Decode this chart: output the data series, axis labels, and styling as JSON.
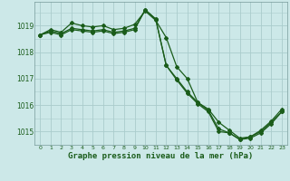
{
  "bg_color": "#cce8e8",
  "grid_color": "#aacccc",
  "line_color": "#1a5c1a",
  "xlabel": "Graphe pression niveau de la mer (hPa)",
  "xlabel_fontsize": 6.5,
  "ylim": [
    1014.5,
    1019.9
  ],
  "yticks": [
    1015,
    1016,
    1017,
    1018,
    1019
  ],
  "xticks": [
    0,
    1,
    2,
    3,
    4,
    5,
    6,
    7,
    8,
    9,
    10,
    11,
    12,
    13,
    14,
    15,
    16,
    17,
    18,
    19,
    20,
    21,
    22,
    23
  ],
  "line1_x": [
    0,
    1,
    2,
    3,
    4,
    5,
    6,
    7,
    8,
    9,
    10,
    11,
    12,
    13,
    14,
    15,
    16,
    17,
    18,
    19,
    20,
    21,
    22,
    23
  ],
  "line1_y": [
    1018.65,
    1018.85,
    1018.75,
    1019.1,
    1019.0,
    1018.95,
    1019.0,
    1018.85,
    1018.9,
    1019.05,
    1019.55,
    1019.2,
    1018.55,
    1017.45,
    1017.0,
    1016.1,
    1015.85,
    1015.35,
    1015.05,
    1014.75,
    1014.8,
    1015.0,
    1015.35,
    1015.75
  ],
  "line2_x": [
    0,
    1,
    2,
    3,
    4,
    5,
    6,
    7,
    8,
    9,
    10,
    11,
    12,
    13,
    14,
    15,
    16,
    17,
    18,
    19,
    20,
    21,
    22,
    23
  ],
  "line2_y": [
    1018.65,
    1018.8,
    1018.7,
    1018.9,
    1018.85,
    1018.8,
    1018.85,
    1018.75,
    1018.8,
    1018.9,
    1019.6,
    1019.25,
    1017.5,
    1017.0,
    1016.5,
    1016.1,
    1015.8,
    1015.1,
    1014.95,
    1014.7,
    1014.75,
    1014.95,
    1015.3,
    1015.75
  ],
  "line3_x": [
    0,
    1,
    2,
    3,
    4,
    5,
    6,
    7,
    8,
    9,
    10,
    11,
    12,
    13,
    14,
    15,
    16,
    17,
    18,
    19,
    20,
    21,
    22,
    23
  ],
  "line3_y": [
    1018.65,
    1018.75,
    1018.65,
    1018.85,
    1018.8,
    1018.75,
    1018.8,
    1018.7,
    1018.75,
    1018.85,
    1019.6,
    1019.25,
    1017.5,
    1016.95,
    1016.45,
    1016.05,
    1015.75,
    1015.0,
    1014.95,
    1014.7,
    1014.8,
    1015.05,
    1015.4,
    1015.85
  ]
}
